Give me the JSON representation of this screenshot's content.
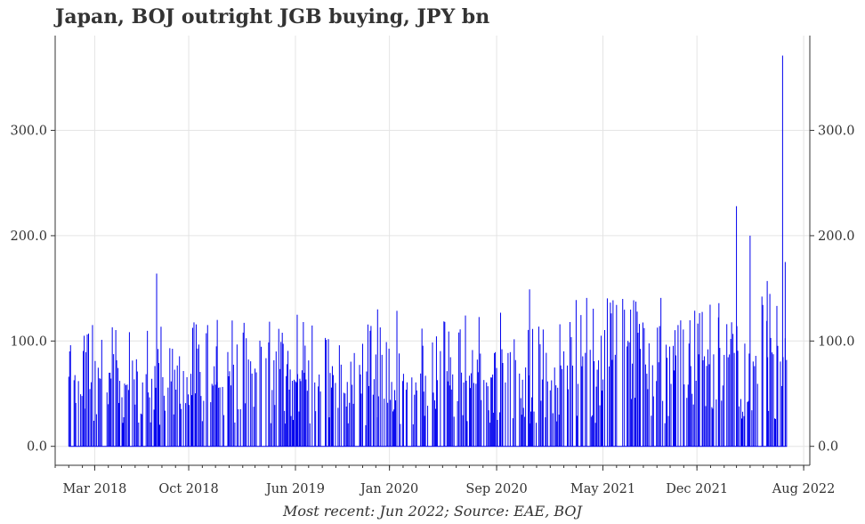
{
  "chart_data": {
    "type": "bar",
    "title": "Japan, BOJ outright JGB buying, JPY bn",
    "source": "Most recent: Jun 2022; Source: EAE, BOJ",
    "xlabel": "",
    "ylabel": "",
    "x_range": [
      "2017-12-01",
      "2022-08-15"
    ],
    "ylim": [
      -18,
      390
    ],
    "grid": true,
    "y_ticks": [
      0,
      100,
      200,
      300
    ],
    "y_tick_labels": [
      "0.0",
      "100.0",
      "200.0",
      "300.0"
    ],
    "x_ticks": [
      "2018-03-01",
      "2018-10-01",
      "2019-06-01",
      "2020-01-01",
      "2020-09-01",
      "2021-05-01",
      "2021-12-01",
      "2022-08-01"
    ],
    "x_tick_labels": [
      "Mar 2018",
      "Oct 2018",
      "Jun 2019",
      "Jan 2020",
      "Sep 2020",
      "May 2021",
      "Dec 2021",
      "Aug 2022"
    ],
    "series_color": "#0000ee",
    "peaks": [
      {
        "x": "2018-01-05",
        "y": 96
      },
      {
        "x": "2018-02-05",
        "y": 105
      },
      {
        "x": "2018-04-10",
        "y": 113
      },
      {
        "x": "2018-07-20",
        "y": 164
      },
      {
        "x": "2018-12-05",
        "y": 120
      },
      {
        "x": "2019-06-05",
        "y": 125
      },
      {
        "x": "2019-12-05",
        "y": 130
      },
      {
        "x": "2020-11-15",
        "y": 149
      },
      {
        "x": "2021-06-15",
        "y": 140
      },
      {
        "x": "2022-01-20",
        "y": 136
      },
      {
        "x": "2022-03-01",
        "y": 228
      },
      {
        "x": "2022-04-01",
        "y": 200
      },
      {
        "x": "2022-05-10",
        "y": 157
      },
      {
        "x": "2022-06-14",
        "y": 371
      },
      {
        "x": "2022-06-20",
        "y": 175
      }
    ],
    "typical_range": [
      {
        "from": "2018-01-01",
        "to": "2019-12-31",
        "low": 60,
        "high": 120
      },
      {
        "from": "2020-01-01",
        "to": "2020-12-31",
        "low": 60,
        "high": 130
      },
      {
        "from": "2021-01-01",
        "to": "2022-06-30",
        "low": 80,
        "high": 145
      }
    ]
  }
}
